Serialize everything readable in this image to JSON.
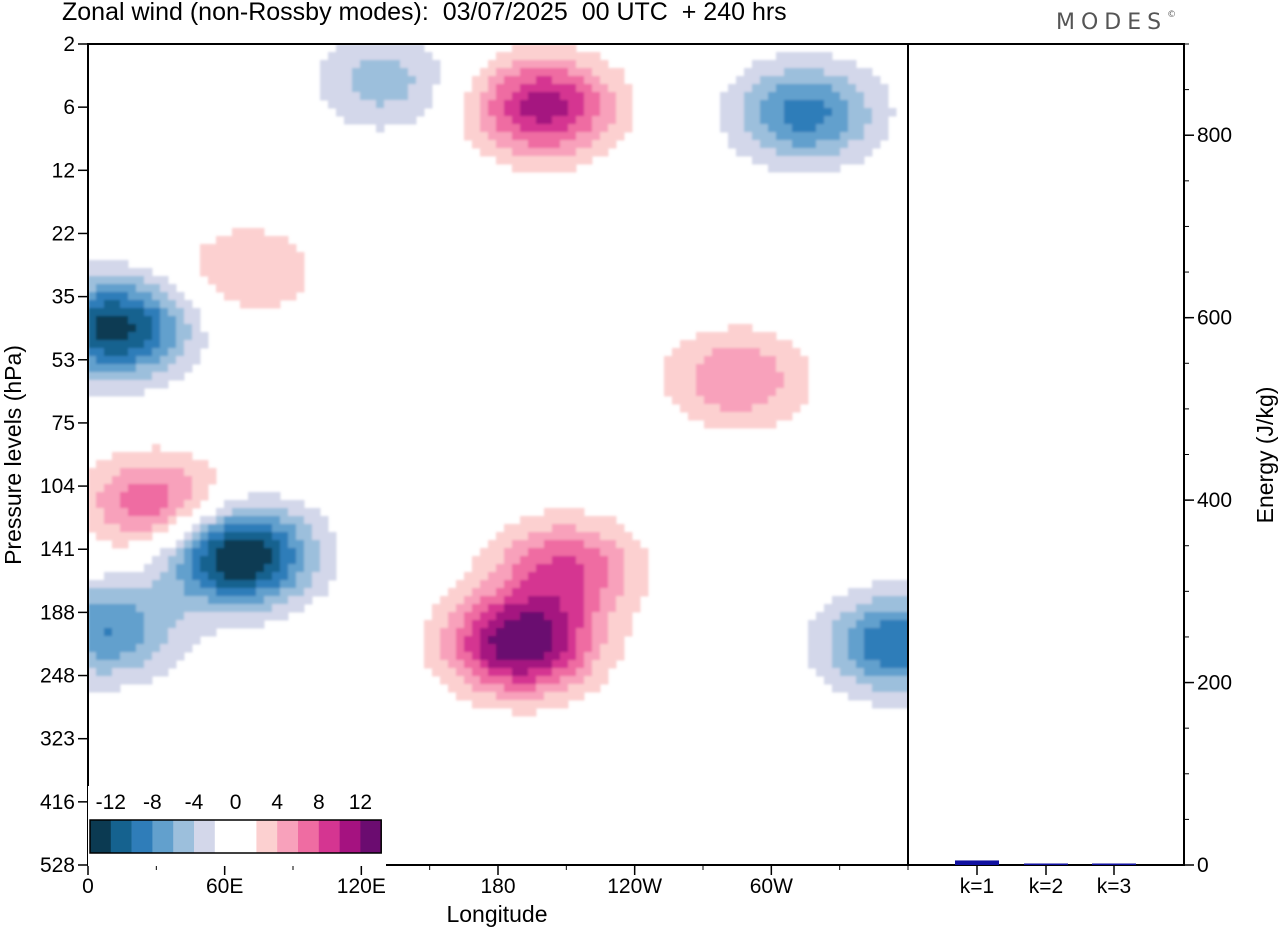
{
  "header": {
    "title": "Zonal wind (non-Rossby modes):  03/07/2025  00 UTC  + 240 hrs",
    "logo": "MODES",
    "logo_mark": "©"
  },
  "chart_data": [
    {
      "type": "heatmap",
      "title": "Zonal wind (non-Rossby modes):  03/07/2025  00 UTC  + 240 hrs",
      "xlabel": "Longitude",
      "ylabel": "Pressure levels (hPa)",
      "x_ticks": [
        "0",
        "60E",
        "120E",
        "180",
        "120W",
        "60W"
      ],
      "x_tick_degrees": [
        0,
        60,
        120,
        180,
        240,
        300
      ],
      "xlim_degrees": [
        0,
        360
      ],
      "y_ticks": [
        "2",
        "6",
        "12",
        "22",
        "35",
        "53",
        "75",
        "104",
        "141",
        "188",
        "248",
        "323",
        "416",
        "528"
      ],
      "colorbar": {
        "labels": [
          "-12",
          "-8",
          "-4",
          "0",
          "4",
          "8",
          "12"
        ],
        "levels": [
          -14,
          -12,
          -10,
          -8,
          -6,
          -4,
          -2,
          0,
          2,
          4,
          6,
          8,
          10,
          12,
          14
        ],
        "colors": [
          "#0b3a52",
          "#15628f",
          "#2f7db9",
          "#62a0cd",
          "#9cbfdc",
          "#d3d7ea",
          "#ffffff",
          "#ffffff",
          "#fcd0d0",
          "#f8a1bb",
          "#ef6ca2",
          "#d53591",
          "#a51280",
          "#6b0c70"
        ],
        "position": "bottom-left"
      },
      "features": [
        {
          "lon": 12,
          "lev": 4.5,
          "value": -13
        },
        {
          "lon": 66,
          "lev": 8.1,
          "value": -15
        },
        {
          "lon": 8,
          "lev": 9.3,
          "value": -8
        },
        {
          "lon": 190,
          "lev": 9.5,
          "value": 14
        },
        {
          "lon": 210,
          "lev": 8.3,
          "value": 8
        },
        {
          "lon": 30,
          "lev": 7.3,
          "value": 8
        },
        {
          "lon": 200,
          "lev": 1.0,
          "value": 11
        },
        {
          "lon": 355,
          "lev": 9.5,
          "value": -10
        },
        {
          "lon": 315,
          "lev": 1.1,
          "value": -9
        },
        {
          "lon": 285,
          "lev": 5.3,
          "value": 6
        },
        {
          "lon": 130,
          "lev": 0.6,
          "value": -5
        },
        {
          "lon": 70,
          "lev": 3.6,
          "value": 4
        }
      ]
    },
    {
      "type": "bar",
      "ylabel": "Energy (J/kg)",
      "categories": [
        "k=1",
        "k=2",
        "k=3"
      ],
      "values": [
        5,
        1,
        0.5
      ],
      "y_ticks": [
        "0",
        "200",
        "400",
        "600",
        "800"
      ],
      "ylim": [
        0,
        900
      ],
      "bar_color": "#1010a0"
    }
  ]
}
